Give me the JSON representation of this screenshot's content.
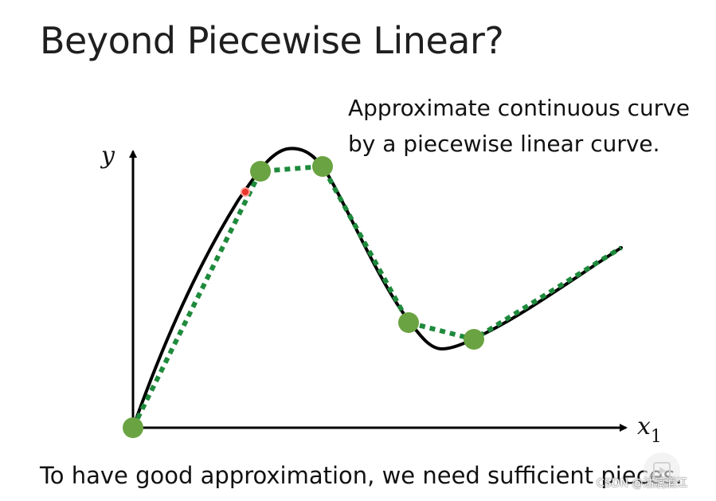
{
  "slide": {
    "title": "Beyond Piecewise Linear?",
    "annotation_lines": [
      "Approximate continuous curve",
      "by a piecewise linear curve."
    ],
    "footer": "To have good approximation, we need sufficient pieces."
  },
  "figure": {
    "y_axis_label": "y",
    "x_axis_label_base": "x",
    "x_axis_label_sub": "1"
  },
  "colors": {
    "curve": "#000000",
    "piecewise": "#1e8a3c",
    "points": "#6aa341",
    "cursor_dot": "#e8342a"
  },
  "watermark": {
    "text": "CSDN @沽漓酒江"
  },
  "icons": {
    "play": "play-icon"
  }
}
